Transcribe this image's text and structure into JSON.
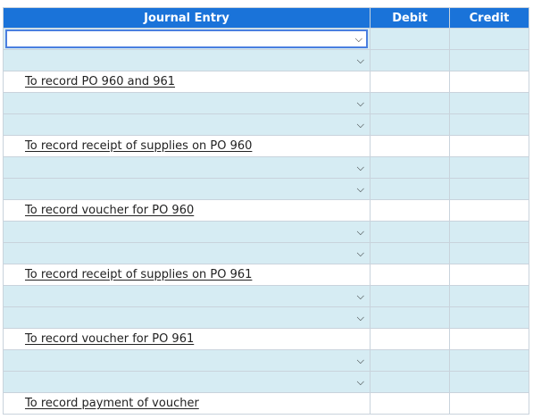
{
  "table": {
    "headers": {
      "account": "Journal Entry",
      "debit": "Debit",
      "credit": "Credit"
    },
    "memos": [
      "To record PO 960 and 961",
      "To record receipt of supplies on PO 960",
      "To record voucher for PO 960",
      "To record receipt of supplies on PO 961",
      "To record voucher for PO 961",
      "To record payment of voucher"
    ],
    "chevron_icon": "chevron-down-icon"
  }
}
